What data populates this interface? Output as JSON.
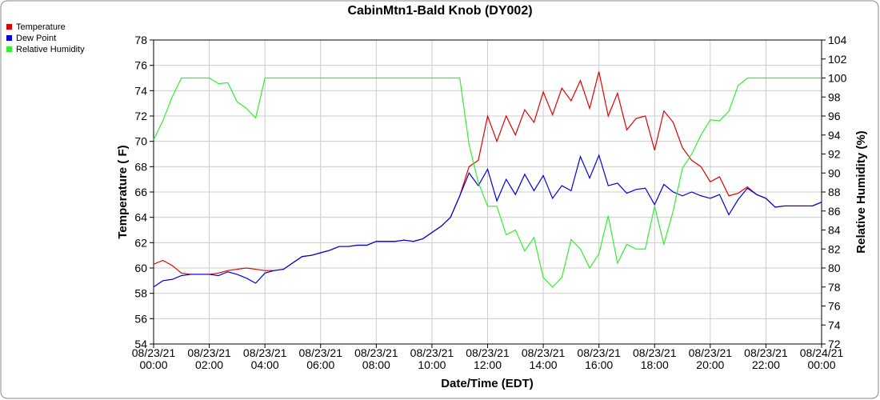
{
  "chart_data": {
    "type": "line",
    "title": "CabinMtn1-Bald Knob (DY002)",
    "xlabel": "Date/Time (EDT)",
    "ylabel": "Temperature ( F)",
    "y2label": "Relative Humidity (%)",
    "legend": "top-left",
    "grid": true,
    "xlim": [
      "08/23/21 00:00",
      "08/24/21 00:00"
    ],
    "xticks": [
      "08/23/21 00:00",
      "08/23/21 02:00",
      "08/23/21 04:00",
      "08/23/21 06:00",
      "08/23/21 08:00",
      "08/23/21 10:00",
      "08/23/21 12:00",
      "08/23/21 14:00",
      "08/23/21 16:00",
      "08/23/21 18:00",
      "08/23/21 20:00",
      "08/23/21 22:00",
      "08/24/21 00:00"
    ],
    "ylim": [
      54,
      78
    ],
    "yticks": [
      54,
      56,
      58,
      60,
      62,
      64,
      66,
      68,
      70,
      72,
      74,
      76,
      78
    ],
    "y2lim": [
      72,
      104
    ],
    "y2ticks": [
      72,
      74,
      76,
      78,
      80,
      82,
      84,
      86,
      88,
      90,
      92,
      94,
      96,
      98,
      100,
      102,
      104
    ],
    "x": [
      "08/23/21 00:00",
      "08/23/21 00:20",
      "08/23/21 00:40",
      "08/23/21 01:00",
      "08/23/21 01:20",
      "08/23/21 01:40",
      "08/23/21 02:00",
      "08/23/21 02:20",
      "08/23/21 02:40",
      "08/23/21 03:00",
      "08/23/21 03:20",
      "08/23/21 03:40",
      "08/23/21 04:00",
      "08/23/21 04:20",
      "08/23/21 04:40",
      "08/23/21 05:00",
      "08/23/21 05:20",
      "08/23/21 05:40",
      "08/23/21 06:00",
      "08/23/21 06:20",
      "08/23/21 06:40",
      "08/23/21 07:00",
      "08/23/21 07:20",
      "08/23/21 07:40",
      "08/23/21 08:00",
      "08/23/21 08:20",
      "08/23/21 08:40",
      "08/23/21 09:00",
      "08/23/21 09:20",
      "08/23/21 09:40",
      "08/23/21 10:00",
      "08/23/21 10:20",
      "08/23/21 10:40",
      "08/23/21 11:00",
      "08/23/21 11:20",
      "08/23/21 11:40",
      "08/23/21 12:00",
      "08/23/21 12:20",
      "08/23/21 12:40",
      "08/23/21 13:00",
      "08/23/21 13:20",
      "08/23/21 13:40",
      "08/23/21 14:00",
      "08/23/21 14:20",
      "08/23/21 14:40",
      "08/23/21 15:00",
      "08/23/21 15:20",
      "08/23/21 15:40",
      "08/23/21 16:00",
      "08/23/21 16:20",
      "08/23/21 16:40",
      "08/23/21 17:00",
      "08/23/21 17:20",
      "08/23/21 17:40",
      "08/23/21 18:00",
      "08/23/21 18:20",
      "08/23/21 18:40",
      "08/23/21 19:00",
      "08/23/21 19:20",
      "08/23/21 19:40",
      "08/23/21 20:00",
      "08/23/21 20:20",
      "08/23/21 20:40",
      "08/23/21 21:00",
      "08/23/21 21:20",
      "08/23/21 21:40",
      "08/23/21 22:00",
      "08/23/21 22:20",
      "08/23/21 22:40",
      "08/23/21 23:00",
      "08/23/21 23:20",
      "08/23/21 23:40",
      "08/24/21 00:00"
    ],
    "series": [
      {
        "name": "Temperature",
        "color": "#e00000",
        "values": [
          60.3,
          60.6,
          60.2,
          59.6,
          59.5,
          59.5,
          59.5,
          59.6,
          59.8,
          59.9,
          60.0,
          59.9,
          59.8,
          59.8,
          59.9,
          60.4,
          60.9,
          61.0,
          61.2,
          61.4,
          61.7,
          61.7,
          61.8,
          61.8,
          62.1,
          62.1,
          62.1,
          62.2,
          62.1,
          62.3,
          62.8,
          63.3,
          64.0,
          65.7,
          68.0,
          68.5,
          72.0,
          70.0,
          72.0,
          70.5,
          72.5,
          71.5,
          73.9,
          72.1,
          74.2,
          73.2,
          74.8,
          72.6,
          75.5,
          72.0,
          73.8,
          70.9,
          71.8,
          72.0,
          69.3,
          72.4,
          71.5,
          69.5,
          68.5,
          68.0,
          66.8,
          67.2,
          65.7,
          65.9,
          66.4,
          65.8,
          65.5,
          64.8,
          64.9,
          64.9,
          64.9,
          64.9,
          65.2
        ]
      },
      {
        "name": "Dew Point",
        "color": "#0000e0",
        "values": [
          58.5,
          59.0,
          59.1,
          59.4,
          59.5,
          59.5,
          59.5,
          59.4,
          59.7,
          59.5,
          59.2,
          58.8,
          59.6,
          59.8,
          59.9,
          60.4,
          60.9,
          61.0,
          61.2,
          61.4,
          61.7,
          61.7,
          61.8,
          61.8,
          62.1,
          62.1,
          62.1,
          62.2,
          62.1,
          62.3,
          62.8,
          63.3,
          64.0,
          65.7,
          67.5,
          66.5,
          67.8,
          65.3,
          67.0,
          65.8,
          67.4,
          66.1,
          67.3,
          65.5,
          66.5,
          66.1,
          68.8,
          67.1,
          68.9,
          66.5,
          66.7,
          65.9,
          66.2,
          66.3,
          65.0,
          66.6,
          66.0,
          65.7,
          66.0,
          65.7,
          65.5,
          65.8,
          64.2,
          65.4,
          66.3,
          65.8,
          65.5,
          64.8,
          64.9,
          64.9,
          64.9,
          64.9,
          65.2
        ]
      },
      {
        "name": "Relative Humidity",
        "color": "#33ee33",
        "axis": "y2",
        "values": [
          93.5,
          95.5,
          98,
          100,
          100,
          100,
          100,
          99.4,
          99.5,
          97.5,
          96.8,
          95.8,
          100,
          100,
          100,
          100,
          100,
          100,
          100,
          100,
          100,
          100,
          100,
          100,
          100,
          100,
          100,
          100,
          100,
          100,
          100,
          100,
          100,
          100,
          93,
          89,
          86.5,
          86.5,
          83.5,
          84,
          81.8,
          83.2,
          79,
          78,
          79,
          83,
          82,
          80,
          81.5,
          85.5,
          80.5,
          82.5,
          82,
          82,
          86.5,
          82.5,
          86,
          90.5,
          92,
          94,
          95.6,
          95.5,
          96.5,
          99.2,
          100,
          100,
          100,
          100,
          100,
          100,
          100,
          100,
          100
        ]
      }
    ]
  }
}
